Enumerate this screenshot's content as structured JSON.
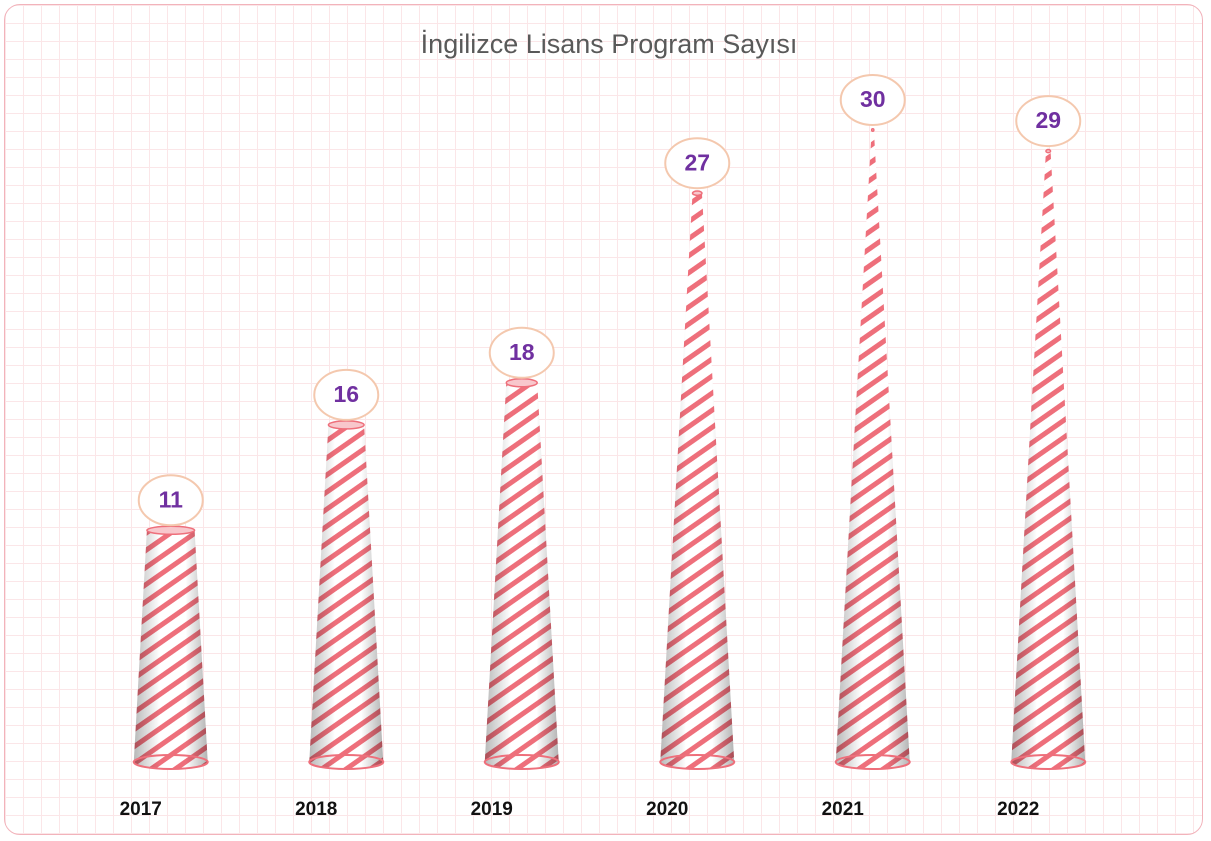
{
  "chart_data": {
    "type": "cone",
    "title": "İngilizce Lisans Program Sayısı",
    "categories": [
      "2017",
      "2018",
      "2019",
      "2020",
      "2021",
      "2022"
    ],
    "values": [
      11,
      16,
      18,
      27,
      30,
      29
    ],
    "color": "#ee6f7b"
  }
}
